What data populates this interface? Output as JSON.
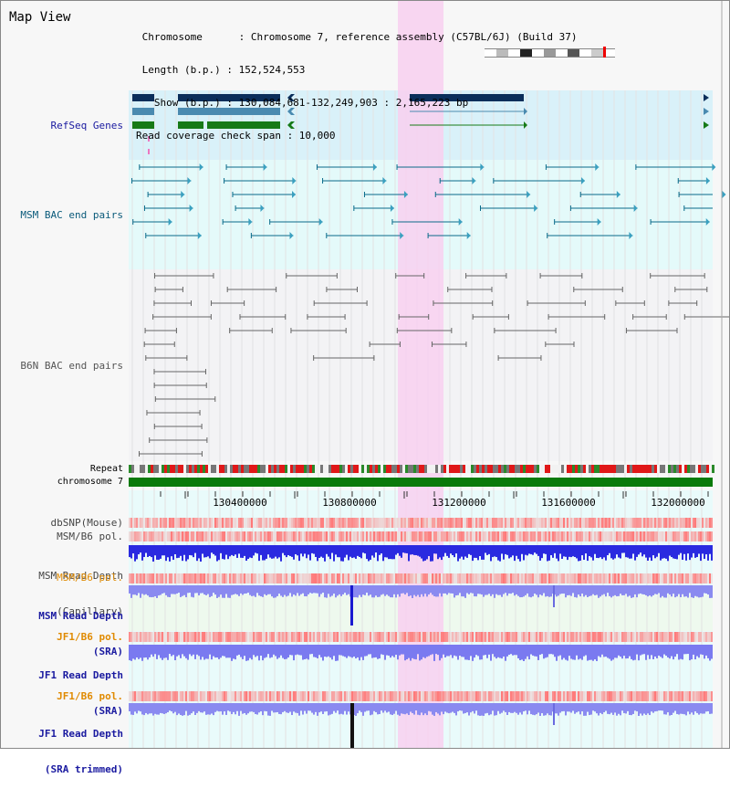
{
  "header": {
    "title": "Map View",
    "lines": [
      " Chromosome      : Chromosome 7, reference assembly (C57BL/6J) (Build 37)",
      " Length (b.p.) : 152,524,553",
      "   Show (b.p.) : 130,084,681-132,249,903 : 2,165,223 bp",
      "Read coverage check span : 10,000"
    ]
  },
  "tracks": {
    "refseq": "RefSeq Genes",
    "msm_bac": "MSM BAC end pairs",
    "b6n_bac": "B6N BAC end pairs",
    "repeat": "Repeat",
    "chromosome": "chromosome 7",
    "dbsnp": "dbSNP(Mouse)",
    "msm_b6_pol_1": "MSM/B6 pol.",
    "msm_read_depth_cap_1": "MSM Read Depth",
    "msm_read_depth_cap_2": "(Capillary)",
    "msm_b6_pol_2": "MSM/B6 pol.",
    "msm_read_depth_sra_1": "MSM Read Depth",
    "msm_read_depth_sra_2": "(SRA)",
    "jf1_b6_pol_1": "JF1/B6 pol.",
    "jf1_read_depth_sra_1": "JF1 Read Depth",
    "jf1_read_depth_sra_2": "(SRA)",
    "jf1_b6_pol_2": "JF1/B6 pol.",
    "jf1_read_depth_trim_1": "JF1 Read Depth",
    "jf1_read_depth_trim_2": "(SRA trimmed)"
  },
  "axis": {
    "ticks": [
      "130400000",
      "130800000",
      "131200000",
      "131600000",
      "132000000"
    ]
  },
  "colors": {
    "refseq_label": "#1a1aa0",
    "msm_bac_label": "#0a5a7a",
    "b6n_bac_label": "#555555",
    "orange_label": "#e08a00",
    "navy_label": "#1a1aa0",
    "highlight": "#f8d0f0"
  }
}
